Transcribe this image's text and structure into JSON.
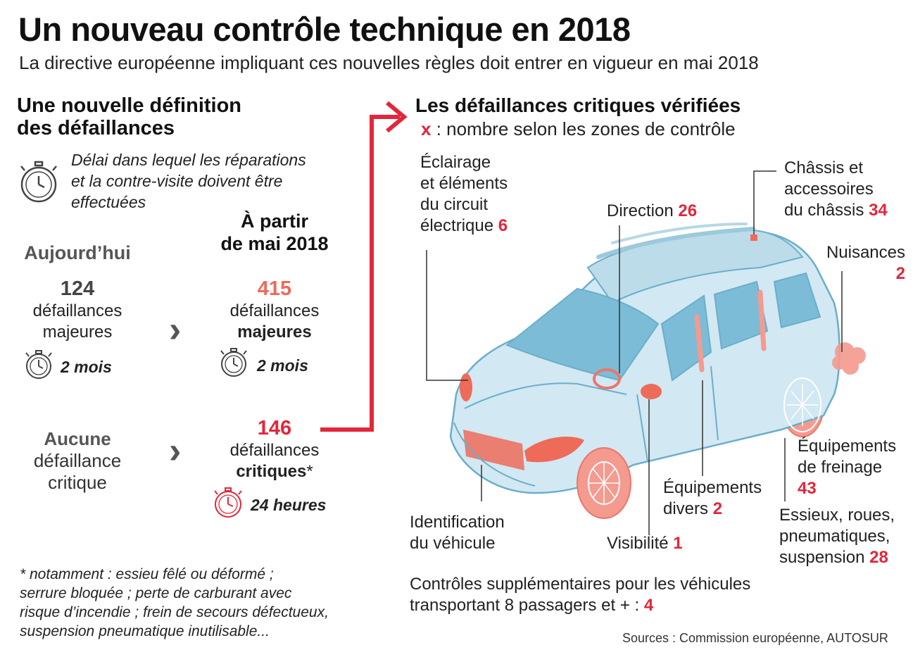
{
  "header": {
    "title": "Un nouveau contrôle technique en 2018",
    "subtitle": "La directive européenne impliquant ces nouvelles règles doit entrer en vigueur en mai 2018"
  },
  "left": {
    "heading_line1": "Une nouvelle définition",
    "heading_line2": "des défaillances",
    "legend_line1": "Délai dans lequel les réparations",
    "legend_line2": "et la contre-visite doivent être",
    "legend_line3": "effectuées",
    "today_label": "Aujourd’hui",
    "from_label_line1": "À partir",
    "from_label_line2": "de mai 2018",
    "today_major_count": "124",
    "today_major_line1": "défaillances",
    "today_major_line2": "majeures",
    "today_major_delay": "2 mois",
    "new_major_count": "415",
    "new_major_line1": "défaillances",
    "new_major_line2": "majeures",
    "new_major_delay": "2 mois",
    "today_critical_line1": "Aucune",
    "today_critical_line2": "défaillance",
    "today_critical_line3": "critique",
    "new_critical_count": "146",
    "new_critical_line1": "défaillances",
    "new_critical_line2": "critiques",
    "new_critical_star": "*",
    "new_critical_delay": "24 heures",
    "footnote_line1": "* notamment : essieu fêlé ou déformé ;",
    "footnote_line2": "serrure bloquée ; perte de carburant avec",
    "footnote_line3": "risque d’incendie ; frein de secours défectueux,",
    "footnote_line4": "suspension pneumatique inutilisable..."
  },
  "right": {
    "heading": "Les défaillances critiques vérifiées",
    "legend_symbol": "x",
    "legend_text": " : nombre selon les zones de contrôle",
    "zones": {
      "eclairage": {
        "line1": "Éclairage",
        "line2": "et éléments",
        "line3": "du circuit",
        "line4": "électrique ",
        "value": "6"
      },
      "direction": {
        "line1": "Direction ",
        "value": "26"
      },
      "chassis": {
        "line1": "Châssis et",
        "line2": "accessoires",
        "line3": "du châssis ",
        "value": "34"
      },
      "nuisances": {
        "line1": "Nuisances",
        "value": "2"
      },
      "freinage": {
        "line1": "Équipements",
        "line2": "de freinage",
        "value": "43"
      },
      "equipements": {
        "line1": "Équipements",
        "line2": "divers ",
        "value": "2"
      },
      "essieux": {
        "line1": "Essieux, roues,",
        "line2": "pneumatiques,",
        "line3": "suspension ",
        "value": "28"
      },
      "identification": {
        "line1": "Identification",
        "line2": "du véhicule"
      },
      "visibilite": {
        "line1": "Visibilité ",
        "value": "1"
      }
    },
    "extra_line1": "Contrôles supplémentaires pour les véhicules",
    "extra_line2": "transportant 8 passagers et + : ",
    "extra_value": "4",
    "sources": "Sources : Commission européenne, AUTOSUR"
  },
  "colors": {
    "accent_red": "#e3263a",
    "salmon": "#ee6b5a",
    "car_body": "#cfe7f1",
    "car_outline": "#6aaecb"
  }
}
